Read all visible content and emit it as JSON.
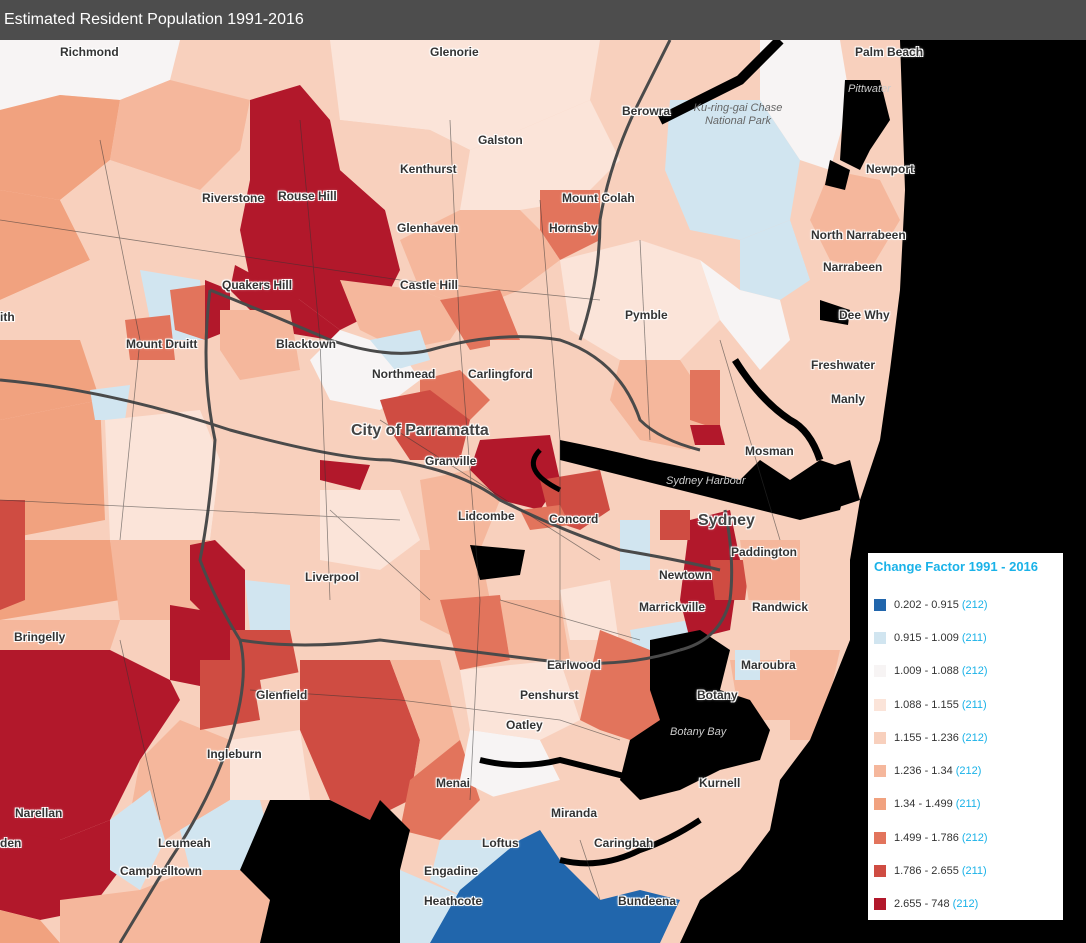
{
  "title": "Estimated Resident Population 1991-2016",
  "colors": {
    "c0": "#2166ac",
    "c1": "#d1e5f0",
    "c2": "#f7f4f4",
    "c3": "#fbe4d9",
    "c4": "#f8d0bd",
    "c5": "#f5b79c",
    "c6": "#f1a27f",
    "c7": "#e2745c",
    "c8": "#cf4c42",
    "c9": "#b2182b",
    "water": "#000000",
    "road": "#4a4a4a"
  },
  "legend": {
    "title": "Change Factor 1991 - 2016",
    "items": [
      {
        "range": "0.202 - 0.915",
        "count": "(212)",
        "color": "#2166ac"
      },
      {
        "range": "0.915 - 1.009",
        "count": "(211)",
        "color": "#d1e5f0"
      },
      {
        "range": "1.009 - 1.088",
        "count": "(212)",
        "color": "#f7f4f4"
      },
      {
        "range": "1.088 - 1.155",
        "count": "(211)",
        "color": "#fbe4d9"
      },
      {
        "range": "1.155 - 1.236",
        "count": "(212)",
        "color": "#f8d0bd"
      },
      {
        "range": "1.236 - 1.34",
        "count": "(212)",
        "color": "#f5b79c"
      },
      {
        "range": "1.34 - 1.499",
        "count": "(211)",
        "color": "#f1a27f"
      },
      {
        "range": "1.499 - 1.786",
        "count": "(212)",
        "color": "#e2745c"
      },
      {
        "range": "1.786 - 2.655",
        "count": "(211)",
        "color": "#cf4c42"
      },
      {
        "range": "2.655 - 748",
        "count": "(212)",
        "color": "#b2182b"
      }
    ]
  },
  "places": {
    "richmond": "Richmond",
    "glenorie": "Glenorie",
    "palm_beach": "Palm Beach",
    "pittwater": "Pittwater",
    "berowra": "Berowra",
    "kuringgai": "Ku-ring-gai Chase National Park",
    "galston": "Galston",
    "kenthurst": "Kenthurst",
    "newport": "Newport",
    "riverstone": "Riverstone",
    "rouse_hill": "Rouse Hill",
    "mount_colah": "Mount Colah",
    "hornsby": "Hornsby",
    "glenhaven": "Glenhaven",
    "north_narrabeen": "North Narrabeen",
    "narrabeen": "Narrabeen",
    "quakers_hill": "Quakers Hill",
    "castle_hill": "Castle Hill",
    "pymble": "Pymble",
    "dee_why": "Dee Why",
    "mount_druitt": "Mount Druitt",
    "blacktown": "Blacktown",
    "northmead": "Northmead",
    "carlingford": "Carlingford",
    "freshwater": "Freshwater",
    "manly": "Manly",
    "parramatta": "City of Parramatta",
    "granville": "Granville",
    "mosman": "Mosman",
    "sydney_harbour": "Sydney Harbour",
    "lidcombe": "Lidcombe",
    "concord": "Concord",
    "sydney": "Sydney",
    "paddington": "Paddington",
    "liverpool": "Liverpool",
    "newtown": "Newtown",
    "marrickville": "Marrickville",
    "randwick": "Randwick",
    "bringelly": "Bringelly",
    "earlwood": "Earlwood",
    "maroubra": "Maroubra",
    "glenfield": "Glenfield",
    "penshurst": "Penshurst",
    "botany": "Botany",
    "oatley": "Oatley",
    "botany_bay": "Botany Bay",
    "ingleburn": "Ingleburn",
    "menai": "Menai",
    "kurnell": "Kurnell",
    "narellan": "Narellan",
    "miranda": "Miranda",
    "leumeah": "Leumeah",
    "loftus": "Loftus",
    "caringbah": "Caringbah",
    "campbelltown": "Campbelltown",
    "engadine": "Engadine",
    "heathcote": "Heathcote",
    "bundeena": "Bundeena",
    "ith": "ith",
    "den": "den"
  }
}
